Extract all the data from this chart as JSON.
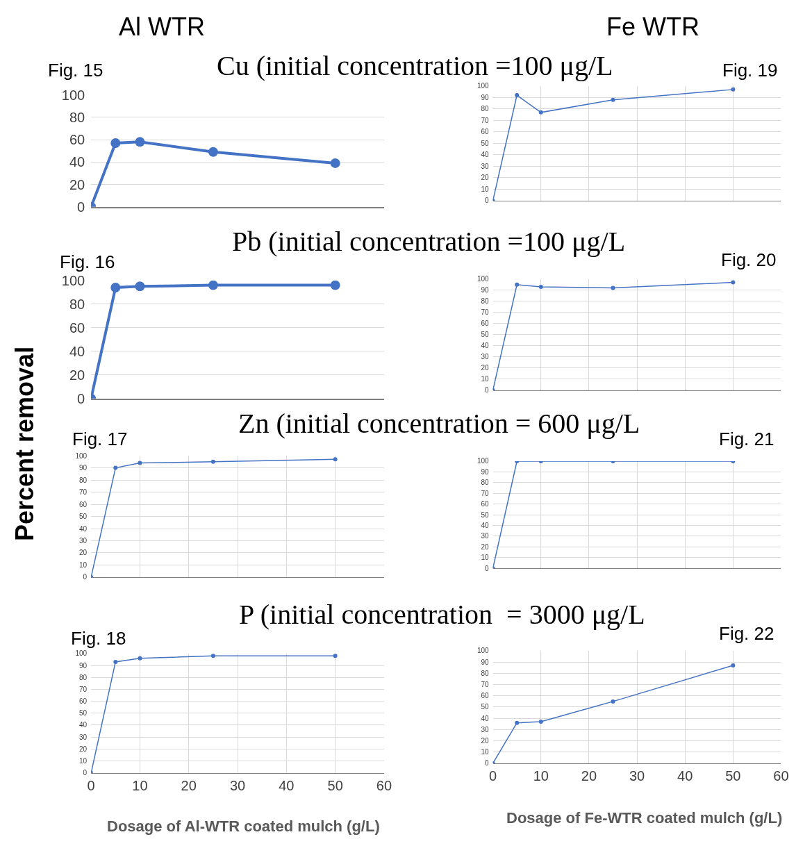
{
  "chart_data": [
    {
      "type": "line",
      "title": "Fig. 15",
      "subtitle": "Cu (initial concentration =100 μg/L",
      "annotations": [
        "Al WTR"
      ],
      "x": [
        0,
        5,
        10,
        25,
        50
      ],
      "values": [
        0,
        57,
        58,
        49,
        39
      ],
      "color": "#4472c4",
      "xlim": [
        0,
        60
      ],
      "xticks": [
        0,
        10,
        20,
        30,
        40,
        50,
        60
      ],
      "ylim": [
        0,
        100
      ],
      "yticks": [
        0,
        20,
        40,
        60,
        80,
        100
      ],
      "grid": "y",
      "marker": "circle",
      "tick_labels": "y"
    },
    {
      "type": "line",
      "title": "Fig. 19",
      "annotations": [
        "Fe WTR"
      ],
      "x": [
        0,
        5,
        10,
        25,
        50
      ],
      "values": [
        0,
        92,
        77,
        88,
        97
      ],
      "color": "#4472c4",
      "xlim": [
        0,
        60
      ],
      "xticks": [
        0,
        10,
        20,
        30,
        40,
        50,
        60
      ],
      "ylim": [
        0,
        100
      ],
      "yticks": [
        0,
        10,
        20,
        30,
        40,
        50,
        60,
        70,
        80,
        90,
        100
      ],
      "grid": true,
      "marker": "circle",
      "tick_labels": "y"
    },
    {
      "type": "line",
      "title": "Fig. 16",
      "subtitle": "Pb (initial concentration =100 μg/L",
      "x": [
        0,
        5,
        10,
        25,
        50
      ],
      "values": [
        0,
        94,
        95,
        96,
        96
      ],
      "color": "#4472c4",
      "xlim": [
        0,
        60
      ],
      "xticks": [
        0,
        10,
        20,
        30,
        40,
        50,
        60
      ],
      "ylim": [
        0,
        100
      ],
      "yticks": [
        0,
        20,
        40,
        60,
        80,
        100
      ],
      "grid": "y",
      "marker": "circle",
      "tick_labels": "y"
    },
    {
      "type": "line",
      "title": "Fig. 20",
      "x": [
        0,
        5,
        10,
        25,
        50
      ],
      "values": [
        0,
        95,
        93,
        92,
        97
      ],
      "color": "#4472c4",
      "xlim": [
        0,
        60
      ],
      "xticks": [
        0,
        10,
        20,
        30,
        40,
        50,
        60
      ],
      "ylim": [
        0,
        100
      ],
      "yticks": [
        0,
        10,
        20,
        30,
        40,
        50,
        60,
        70,
        80,
        90,
        100
      ],
      "grid": true,
      "marker": "circle",
      "tick_labels": "y"
    },
    {
      "type": "line",
      "title": "Fig. 17",
      "subtitle": "Zn (initial concentration = 600 μg/L",
      "ylabel": "Percent removal",
      "x": [
        0,
        5,
        10,
        25,
        50
      ],
      "values": [
        0,
        90,
        94,
        95,
        97
      ],
      "color": "#4472c4",
      "xlim": [
        0,
        60
      ],
      "xticks": [
        0,
        10,
        20,
        30,
        40,
        50,
        60
      ],
      "ylim": [
        0,
        100
      ],
      "yticks": [
        0,
        10,
        20,
        30,
        40,
        50,
        60,
        70,
        80,
        90,
        100
      ],
      "grid": true,
      "marker": "circle",
      "tick_labels": "y"
    },
    {
      "type": "line",
      "title": "Fig. 21",
      "x": [
        0,
        5,
        10,
        25,
        50
      ],
      "values": [
        0,
        100,
        100,
        100,
        100
      ],
      "color": "#4472c4",
      "xlim": [
        0,
        60
      ],
      "xticks": [
        0,
        10,
        20,
        30,
        40,
        50,
        60
      ],
      "ylim": [
        0,
        100
      ],
      "yticks": [
        0,
        10,
        20,
        30,
        40,
        50,
        60,
        70,
        80,
        90,
        100
      ],
      "grid": true,
      "marker": "circle",
      "tick_labels": "y"
    },
    {
      "type": "line",
      "title": "Fig. 18",
      "subtitle": "P (initial concentration  = 3000 μg/L",
      "xlabel": "Dosage of Al-WTR coated mulch (g/L)",
      "x": [
        0,
        5,
        10,
        25,
        50
      ],
      "values": [
        0,
        93,
        96,
        98,
        98
      ],
      "color": "#4472c4",
      "xlim": [
        0,
        60
      ],
      "xticks": [
        0,
        10,
        20,
        30,
        40,
        50,
        60
      ],
      "ylim": [
        0,
        100
      ],
      "yticks": [
        0,
        10,
        20,
        30,
        40,
        50,
        60,
        70,
        80,
        90,
        100
      ],
      "grid": true,
      "marker": "circle"
    },
    {
      "type": "line",
      "title": "Fig. 22",
      "xlabel": "Dosage of Fe-WTR coated mulch (g/L)",
      "x": [
        0,
        5,
        10,
        25,
        50
      ],
      "values": [
        0,
        36,
        37,
        55,
        87
      ],
      "color": "#4472c4",
      "xlim": [
        0,
        60
      ],
      "xticks": [
        0,
        10,
        20,
        30,
        40,
        50,
        60
      ],
      "ylim": [
        0,
        100
      ],
      "yticks": [
        0,
        10,
        20,
        30,
        40,
        50,
        60,
        70,
        80,
        90,
        100
      ],
      "grid": true,
      "marker": "circle"
    }
  ]
}
